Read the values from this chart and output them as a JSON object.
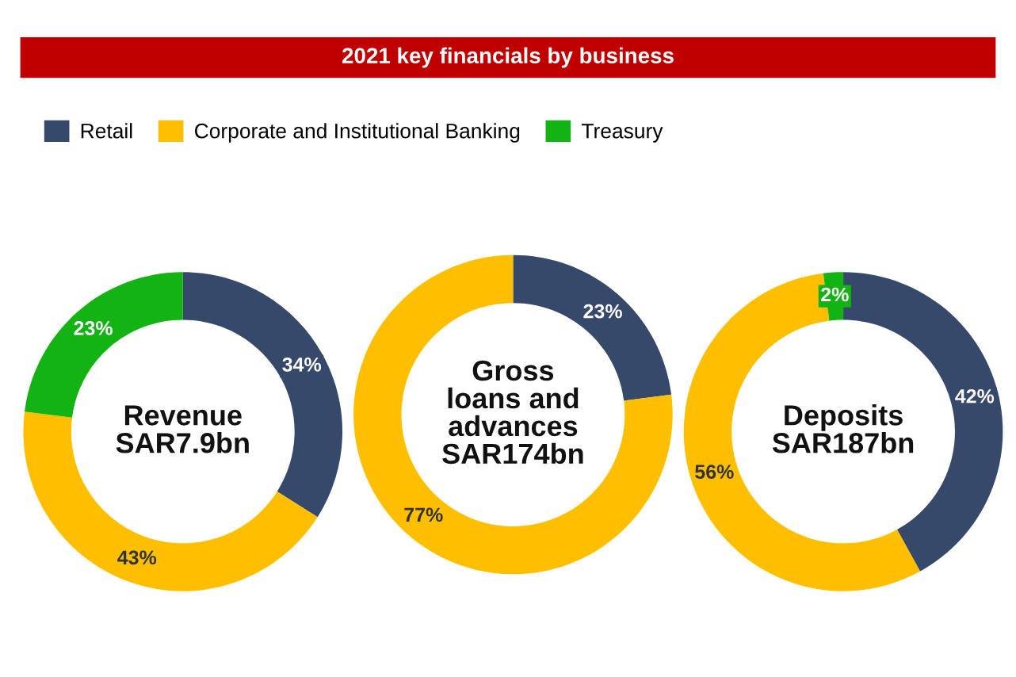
{
  "chart_data": [
    {
      "type": "donut",
      "legend": "top right",
      "categories": [
        "Retail",
        "Corporate and Institutional Banking",
        "Treasury"
      ],
      "values": [
        34,
        43,
        23
      ],
      "value_labels": [
        "34%",
        "43%",
        "23%"
      ],
      "colors": [
        "#37496b",
        "#fdbf00",
        "#12b312"
      ],
      "annotations": [
        "Revenue\nSAR7.9bn"
      ]
    },
    {
      "type": "donut",
      "title": "2021 key financials by business",
      "categories": [
        null,
        null
      ],
      "values": [
        23,
        77
      ],
      "value_labels": [
        "23%",
        "77%"
      ],
      "colors": [
        "#37496b",
        "#fdbf00"
      ],
      "annotations": [
        "Gross\nloans and\nadvances\nSAR174bn"
      ]
    },
    {
      "type": "donut",
      "categories": [
        null,
        null,
        null
      ],
      "values": [
        42,
        56,
        2
      ],
      "value_labels": [
        "42%",
        "56%",
        "2%"
      ],
      "colors": [
        "#37496b",
        "#fdbf00",
        "#12b312"
      ],
      "annotations": [
        "Deposits\nSAR187bn"
      ]
    }
  ]
}
